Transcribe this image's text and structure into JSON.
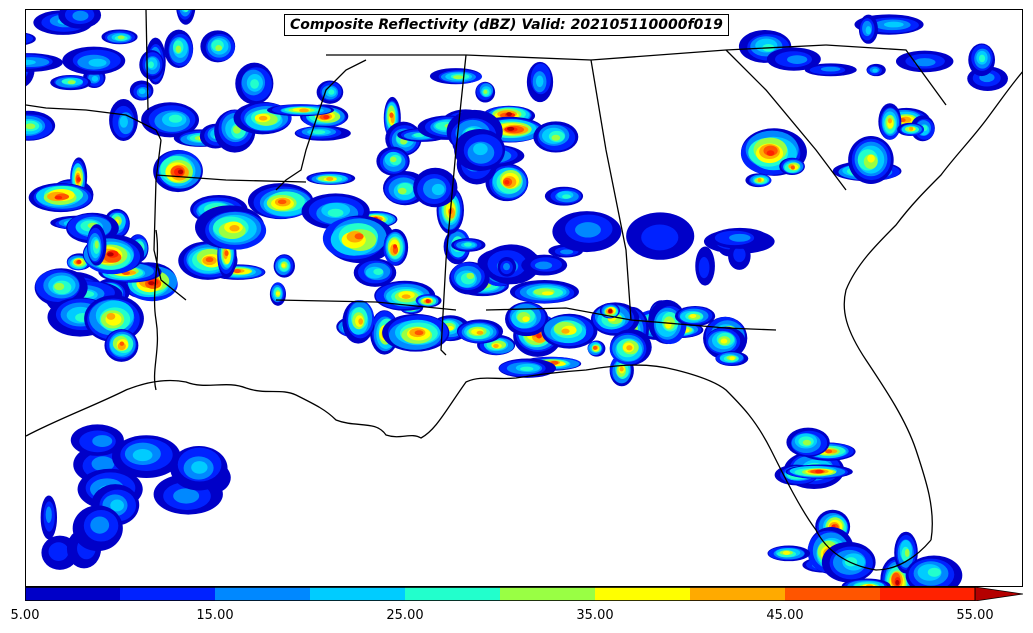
{
  "map": {
    "title": "Composite Reflectivity (dBZ) Valid: 202105110000f019"
  },
  "colorbar": {
    "min": 5,
    "max": 55,
    "extend": "max",
    "levels": [
      5,
      10,
      15,
      20,
      25,
      30,
      35,
      40,
      45,
      50,
      55
    ],
    "colors": [
      "#0000c8",
      "#0022ff",
      "#0088ff",
      "#00ccff",
      "#22ffcc",
      "#99ff44",
      "#ffff00",
      "#ffaa00",
      "#ff5500",
      "#ff2200",
      "#b40000"
    ],
    "tick_labels": [
      "5.00",
      "15.00",
      "25.00",
      "35.00",
      "45.00",
      "55.00"
    ],
    "tick_values": [
      5,
      15,
      25,
      35,
      45,
      55
    ]
  }
}
